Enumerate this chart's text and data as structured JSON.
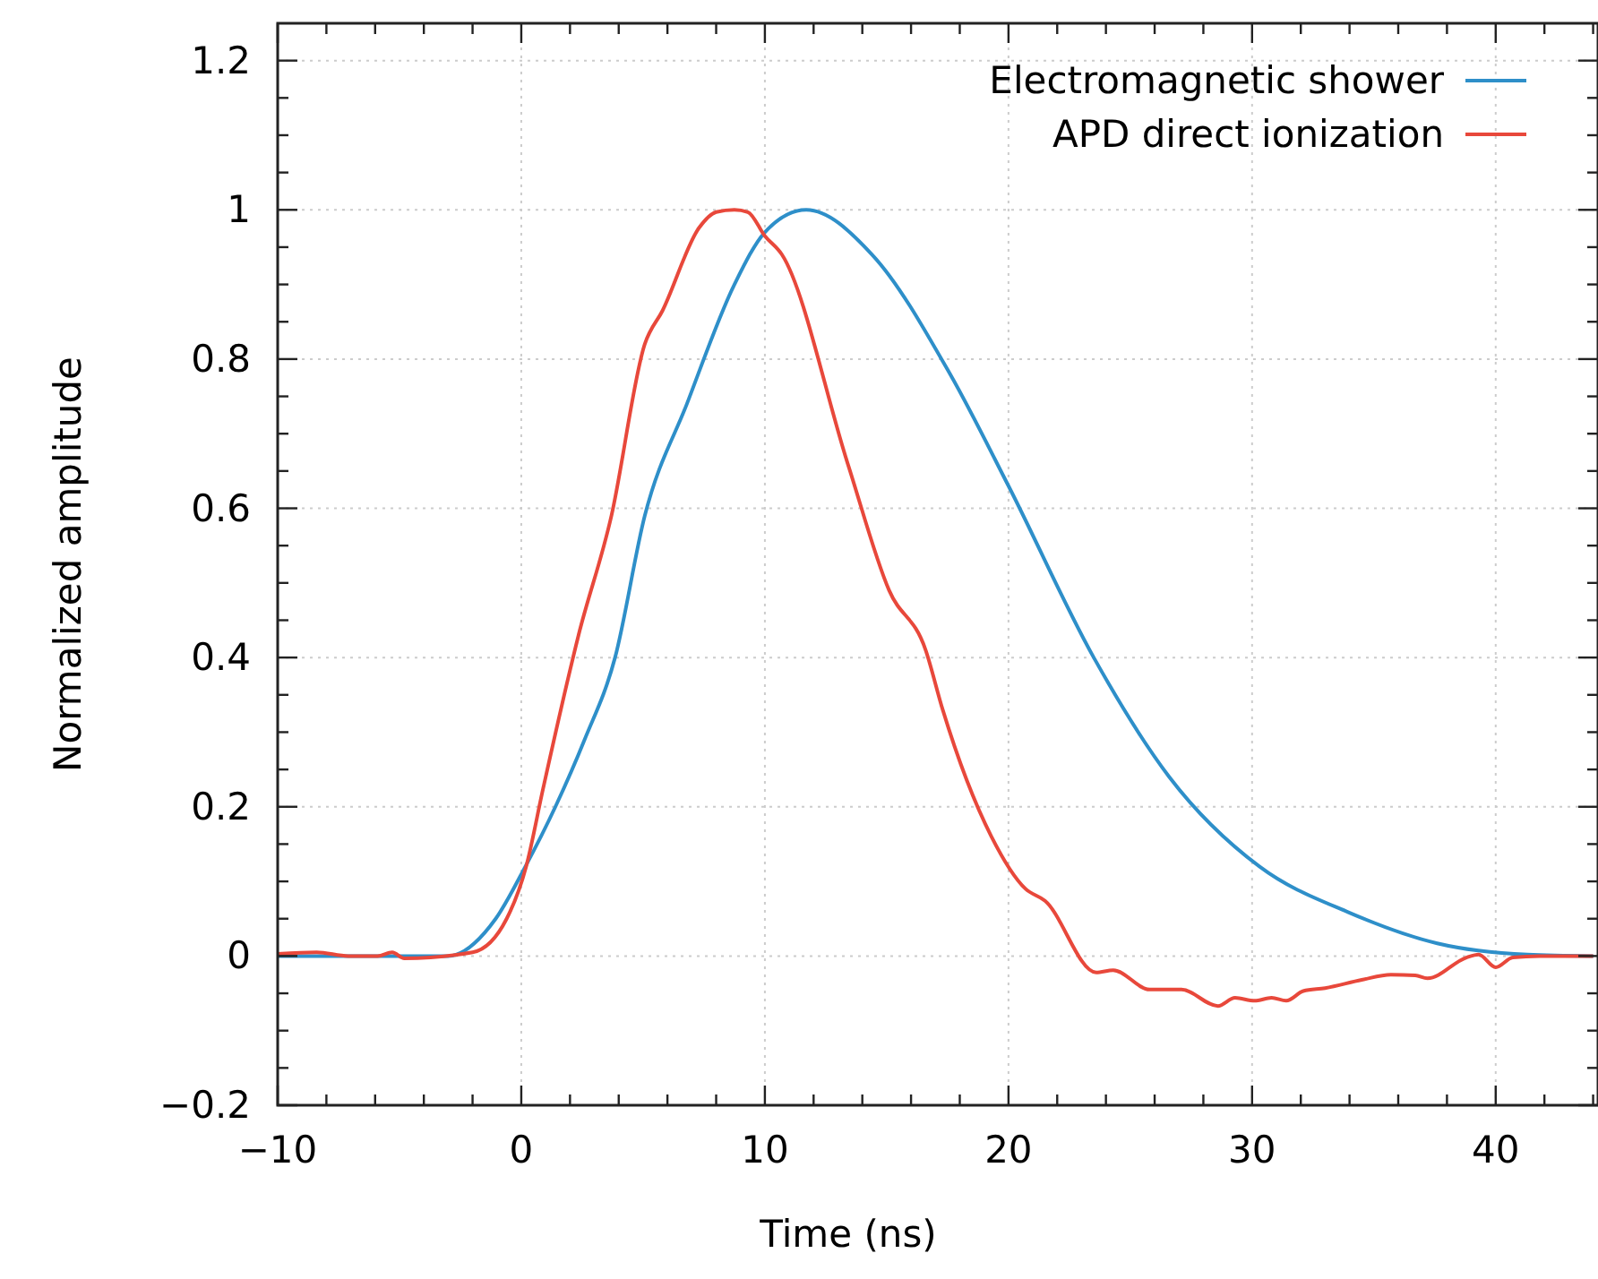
{
  "chart_data": {
    "type": "line",
    "xlabel": "Time (ns)",
    "ylabel": "Normalized amplitude",
    "xlim": [
      -10,
      44.2
    ],
    "ylim": [
      -0.2,
      1.25
    ],
    "xticks": [
      {
        "value": -10,
        "label": "−10"
      },
      {
        "value": -8,
        "label": null
      },
      {
        "value": -6,
        "label": null
      },
      {
        "value": -4,
        "label": null
      },
      {
        "value": -2,
        "label": null
      },
      0,
      {
        "value": 2,
        "label": null
      },
      {
        "value": 4,
        "label": null
      },
      {
        "value": 6,
        "label": null
      },
      {
        "value": 8,
        "label": null
      },
      10,
      {
        "value": 12,
        "label": null
      },
      {
        "value": 14,
        "label": null
      },
      {
        "value": 16,
        "label": null
      },
      {
        "value": 18,
        "label": null
      },
      20,
      {
        "value": 22,
        "label": null
      },
      {
        "value": 24,
        "label": null
      },
      {
        "value": 26,
        "label": null
      },
      {
        "value": 28,
        "label": null
      },
      30,
      {
        "value": 32,
        "label": null
      },
      {
        "value": 34,
        "label": null
      },
      {
        "value": 36,
        "label": null
      },
      {
        "value": 38,
        "label": null
      },
      40,
      {
        "value": 42,
        "label": null
      },
      {
        "value": 44,
        "label": null
      }
    ],
    "yticks": [
      {
        "value": -0.2,
        "label": "−0.2"
      },
      {
        "value": -0.15,
        "label": null
      },
      {
        "value": -0.1,
        "label": null
      },
      {
        "value": -0.05,
        "label": null
      },
      0,
      {
        "value": 0.05,
        "label": null
      },
      {
        "value": 0.1,
        "label": null
      },
      {
        "value": 0.15,
        "label": null
      },
      0.2,
      {
        "value": 0.25,
        "label": null
      },
      {
        "value": 0.3,
        "label": null
      },
      {
        "value": 0.35,
        "label": null
      },
      0.4,
      {
        "value": 0.45,
        "label": null
      },
      {
        "value": 0.5,
        "label": null
      },
      {
        "value": 0.55,
        "label": null
      },
      0.6,
      {
        "value": 0.65,
        "label": null
      },
      {
        "value": 0.7,
        "label": null
      },
      {
        "value": 0.75,
        "label": null
      },
      0.8,
      {
        "value": 0.85,
        "label": null
      },
      {
        "value": 0.9,
        "label": null
      },
      {
        "value": 0.95,
        "label": null
      },
      1,
      {
        "value": 1.05,
        "label": null
      },
      {
        "value": 1.1,
        "label": null
      },
      {
        "value": 1.15,
        "label": null
      },
      1.2
    ],
    "grid": true,
    "legend": "top right",
    "line_style": "solid",
    "series": [
      {
        "name": "Electromagnetic shower",
        "color": "#2e8fc9",
        "x": [
          -10,
          -3,
          -1.05,
          0.17,
          1.4,
          2.6,
          3.85,
          5.07,
          6.8,
          8.75,
          10,
          11.7,
          14.4,
          17.6,
          20,
          23.5,
          26.6,
          30.3,
          34,
          37.6,
          41.3,
          44
        ],
        "values": [
          0,
          0,
          0.05,
          0.12,
          0.2,
          0.29,
          0.4,
          0.59,
          0.74,
          0.9,
          0.97,
          1,
          0.94,
          0.78,
          0.63,
          0.4,
          0.24,
          0.12,
          0.058,
          0.017,
          0.002,
          0
        ]
      },
      {
        "name": "APD direct ionization",
        "color": "#e8483b",
        "x": [
          -10,
          -8.4,
          -7.1,
          -5.9,
          -5.3,
          -4.8,
          -2,
          -0.6,
          0.2,
          0.9,
          2.35,
          3.7,
          5.07,
          5.8,
          7.3,
          8,
          8.75,
          9.3,
          10,
          10.7,
          13.4,
          15.1,
          16.6,
          17.3,
          19.3,
          20.7,
          21.5,
          23.6,
          24.3,
          25.8,
          27.1,
          28.6,
          29.3,
          30.1,
          30.8,
          31.4,
          32.1,
          33,
          34.5,
          35.7,
          36.7,
          37.2,
          38.8,
          39.3,
          40,
          40.7,
          41.8,
          44
        ],
        "values": [
          0.003,
          0.005,
          0,
          0,
          0.005,
          -0.003,
          0.005,
          0.05,
          0.12,
          0.225,
          0.43,
          0.59,
          0.82,
          0.865,
          0.976,
          0.997,
          1,
          0.997,
          0.965,
          0.94,
          0.66,
          0.49,
          0.41,
          0.33,
          0.16,
          0.09,
          0.074,
          -0.022,
          -0.019,
          -0.045,
          -0.045,
          -0.067,
          -0.056,
          -0.06,
          -0.056,
          -0.06,
          -0.047,
          -0.043,
          -0.032,
          -0.025,
          -0.026,
          -0.03,
          -0.002,
          0.002,
          -0.015,
          -0.002,
          0,
          0
        ]
      }
    ]
  }
}
